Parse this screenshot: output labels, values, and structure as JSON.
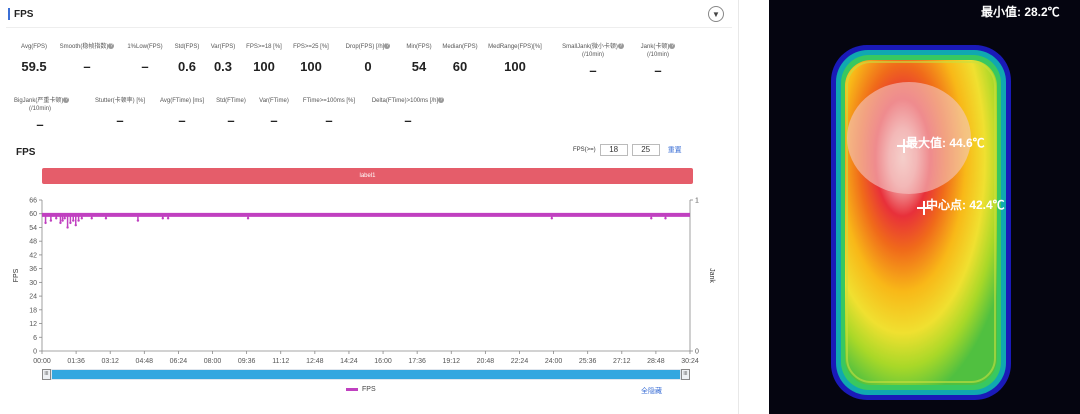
{
  "panel": {
    "title": "FPS",
    "collapse_icon": "chevron-down-icon"
  },
  "metrics_row1": [
    {
      "label": "Avg(FPS)",
      "value": "59.5",
      "help": false
    },
    {
      "label": "Smooth(稳帧指数)",
      "value": "–",
      "help": true
    },
    {
      "label": "1%Low(FPS)",
      "value": "–",
      "help": false
    },
    {
      "label": "Std(FPS)",
      "value": "0.6",
      "help": false
    },
    {
      "label": "Var(FPS)",
      "value": "0.3",
      "help": false
    },
    {
      "label": "FPS>=18 [%]",
      "value": "100",
      "help": false
    },
    {
      "label": "FPS>=25 [%]",
      "value": "100",
      "help": false
    },
    {
      "label": "Drop(FPS) [/h]",
      "value": "0",
      "help": true
    },
    {
      "label": "Min(FPS)",
      "value": "54",
      "help": false
    },
    {
      "label": "Median(FPS)",
      "value": "60",
      "help": false
    },
    {
      "label": "MedRange(FPS)[%]",
      "value": "100",
      "help": false
    },
    {
      "label": "SmallJank(微小卡顿)",
      "label2": "(/10min)",
      "value": "–",
      "help": true
    },
    {
      "label": "Jank(卡顿)",
      "label2": "(/10min)",
      "value": "–",
      "help": true
    }
  ],
  "metrics_row2": [
    {
      "label": "BigJank(严重卡顿)",
      "label2": "(/10min)",
      "value": "–",
      "help": true
    },
    {
      "label": "Stutter(卡顿率) [%]",
      "value": "–",
      "help": false
    },
    {
      "label": "Avg(FTime) [ms]",
      "value": "–",
      "help": false
    },
    {
      "label": "Std(FTime)",
      "value": "–",
      "help": false
    },
    {
      "label": "Var(FTime)",
      "value": "–",
      "help": false
    },
    {
      "label": "FTime>=100ms [%]",
      "value": "–",
      "help": false
    },
    {
      "label": "Delta(FTime)>100ms [/h]",
      "value": "–",
      "help": true
    }
  ],
  "chart_header": {
    "title": "FPS",
    "threshold_label": "FPS(>=)",
    "threshold_1": "18",
    "threshold_2": "25",
    "reset_label": "重置"
  },
  "label_band": "label1",
  "chart_data": {
    "type": "line",
    "ylabel": "FPS",
    "y2label": "Jank",
    "ylim": [
      0,
      66
    ],
    "yticks": [
      "66",
      "60",
      "54",
      "48",
      "42",
      "36",
      "30",
      "24",
      "18",
      "12",
      "6",
      "0"
    ],
    "y2ticks": [
      "1",
      "0"
    ],
    "xticks": [
      "00:00",
      "01:36",
      "03:12",
      "04:48",
      "06:24",
      "08:00",
      "09:36",
      "11:12",
      "12:48",
      "14:24",
      "16:00",
      "17:36",
      "19:12",
      "20:48",
      "22:24",
      "24:00",
      "25:36",
      "27:12",
      "28:48",
      "30:24"
    ],
    "xlim_seconds": [
      0,
      1824
    ],
    "baseline_fps": 59.5,
    "dips": [
      {
        "t": 10,
        "v": 56
      },
      {
        "t": 25,
        "v": 57
      },
      {
        "t": 40,
        "v": 58
      },
      {
        "t": 52,
        "v": 56
      },
      {
        "t": 58,
        "v": 57
      },
      {
        "t": 64,
        "v": 58
      },
      {
        "t": 72,
        "v": 54
      },
      {
        "t": 80,
        "v": 56
      },
      {
        "t": 88,
        "v": 57
      },
      {
        "t": 95,
        "v": 55
      },
      {
        "t": 103,
        "v": 57
      },
      {
        "t": 112,
        "v": 58
      },
      {
        "t": 140,
        "v": 58
      },
      {
        "t": 180,
        "v": 58
      },
      {
        "t": 270,
        "v": 57
      },
      {
        "t": 340,
        "v": 58
      },
      {
        "t": 355,
        "v": 58
      },
      {
        "t": 580,
        "v": 58
      },
      {
        "t": 1435,
        "v": 58
      },
      {
        "t": 1715,
        "v": 58
      },
      {
        "t": 1755,
        "v": 58
      }
    ],
    "series": [
      {
        "name": "FPS",
        "color": "#c040c0"
      }
    ]
  },
  "legend": {
    "label": "FPS"
  },
  "hide_all_label": "全隐藏",
  "thermal": {
    "min_label": "最小值: 28.2℃",
    "max_label": "最大值: 44.6℃",
    "center_label": "中心点: 42.4℃"
  }
}
